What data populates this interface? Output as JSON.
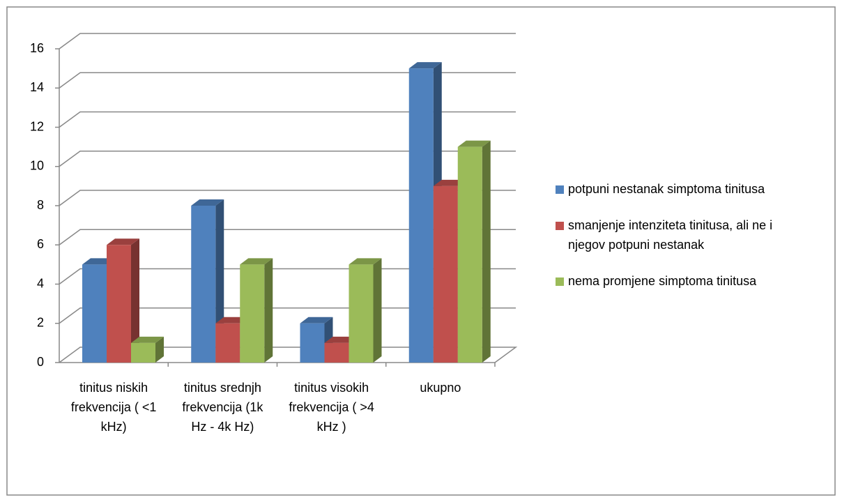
{
  "chart_data": {
    "type": "bar3d",
    "categories": [
      "tinitus niskih frekvencija ( <1 kHz)",
      "tinitus srednjh frekvencija (1k Hz - 4k Hz)",
      "tinitus visokih frekvencija ( >4 kHz )",
      "ukupno"
    ],
    "series": [
      {
        "name": "potpuni nestanak simptoma tinitusa",
        "color": "#4f81bd",
        "values": [
          5,
          8,
          2,
          15
        ]
      },
      {
        "name": "smanjenje intenziteta tinitusa, ali ne i njegov potpuni nestanak",
        "color": "#c0504d",
        "values": [
          6,
          2,
          1,
          9
        ]
      },
      {
        "name": "nema promjene simptoma tinitusa",
        "color": "#9bbb59",
        "values": [
          1,
          5,
          5,
          11
        ]
      }
    ],
    "ylim": [
      0,
      16
    ],
    "yticks": [
      0,
      2,
      4,
      6,
      8,
      10,
      12,
      14,
      16
    ],
    "grid": true,
    "legend": "right"
  }
}
